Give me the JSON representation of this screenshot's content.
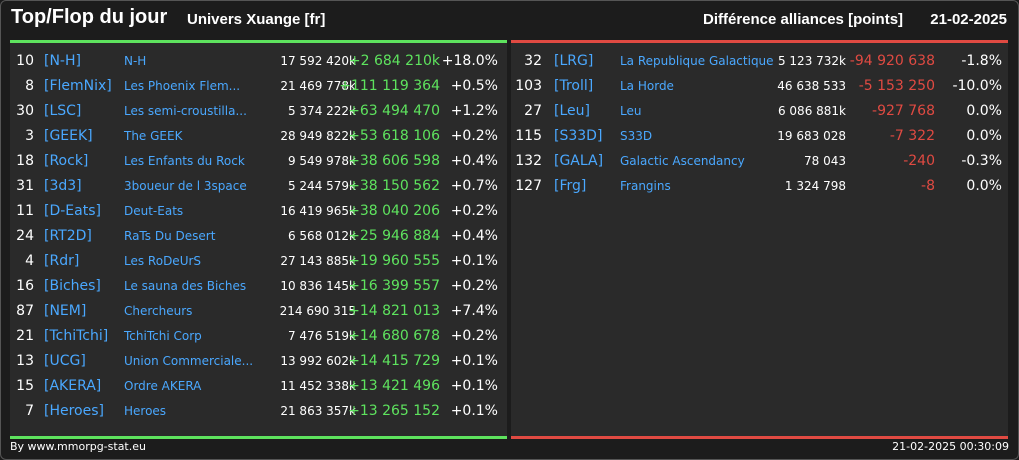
{
  "header": {
    "title": "Top/Flop du jour",
    "subtitle": "Univers Xuange [fr]",
    "diff_label": "Différence alliances [points]",
    "date": "21-02-2025"
  },
  "colors": {
    "positive": "#5ee35e",
    "negative": "#e04a42",
    "link": "#4aa8ff"
  },
  "top": [
    {
      "rank": "10",
      "tag": "[N-H]",
      "name": "N-H",
      "points": "17 592 420k",
      "diff": "+2 684 210k",
      "pct": "+18.0%"
    },
    {
      "rank": "8",
      "tag": "[FlemNix]",
      "name": "Les Phoenix Flem...",
      "points": "21 469 778k",
      "diff": "+111 119 364",
      "pct": "+0.5%"
    },
    {
      "rank": "30",
      "tag": "[LSC]",
      "name": "Les semi-croustilla...",
      "points": "5 374 222k",
      "diff": "+63 494 470",
      "pct": "+1.2%"
    },
    {
      "rank": "3",
      "tag": "[GEEK]",
      "name": "The GEEK",
      "points": "28 949 822k",
      "diff": "+53 618 106",
      "pct": "+0.2%"
    },
    {
      "rank": "18",
      "tag": "[Rock]",
      "name": "Les Enfants du Rock",
      "points": "9 549 978k",
      "diff": "+38 606 598",
      "pct": "+0.4%"
    },
    {
      "rank": "31",
      "tag": "[3d3]",
      "name": "3boueur de l 3space",
      "points": "5 244 579k",
      "diff": "+38 150 562",
      "pct": "+0.7%"
    },
    {
      "rank": "11",
      "tag": "[D-Eats]",
      "name": "Deut-Eats",
      "points": "16 419 965k",
      "diff": "+38 040 206",
      "pct": "+0.2%"
    },
    {
      "rank": "24",
      "tag": "[RT2D]",
      "name": "RaTs Du Desert",
      "points": "6 568 012k",
      "diff": "+25 946 884",
      "pct": "+0.4%"
    },
    {
      "rank": "4",
      "tag": "[Rdr]",
      "name": "Les RoDeUrS",
      "points": "27 143 885k",
      "diff": "+19 960 555",
      "pct": "+0.1%"
    },
    {
      "rank": "16",
      "tag": "[Biches]",
      "name": "Le sauna des Biches",
      "points": "10 836 145k",
      "diff": "+16 399 557",
      "pct": "+0.2%"
    },
    {
      "rank": "87",
      "tag": "[NEM]",
      "name": "Chercheurs",
      "points": "214 690 315",
      "diff": "+14 821 013",
      "pct": "+7.4%"
    },
    {
      "rank": "21",
      "tag": "[TchiTchi]",
      "name": "TchiTchi Corp",
      "points": "7 476 519k",
      "diff": "+14 680 678",
      "pct": "+0.2%"
    },
    {
      "rank": "13",
      "tag": "[UCG]",
      "name": "Union Commerciale...",
      "points": "13 992 602k",
      "diff": "+14 415 729",
      "pct": "+0.1%"
    },
    {
      "rank": "15",
      "tag": "[AKERA]",
      "name": "Ordre AKERA",
      "points": "11 452 338k",
      "diff": "+13 421 496",
      "pct": "+0.1%"
    },
    {
      "rank": "7",
      "tag": "[Heroes]",
      "name": "Heroes",
      "points": "21 863 357k",
      "diff": "+13 265 152",
      "pct": "+0.1%"
    }
  ],
  "flop": [
    {
      "rank": "32",
      "tag": "[LRG]",
      "name": "La Republique Galactique",
      "points": "5 123 732k",
      "diff": "-94 920 638",
      "pct": "-1.8%"
    },
    {
      "rank": "103",
      "tag": "[Troll]",
      "name": "La Horde",
      "points": "46 638 533",
      "diff": "-5 153 250",
      "pct": "-10.0%"
    },
    {
      "rank": "27",
      "tag": "[Leu]",
      "name": "Leu",
      "points": "6 086 881k",
      "diff": "-927 768",
      "pct": "0.0%"
    },
    {
      "rank": "115",
      "tag": "[S33D]",
      "name": "S33D",
      "points": "19 683 028",
      "diff": "-7 322",
      "pct": "0.0%"
    },
    {
      "rank": "132",
      "tag": "[GALA]",
      "name": "Galactic Ascendancy",
      "points": "78 043",
      "diff": "-240",
      "pct": "-0.3%"
    },
    {
      "rank": "127",
      "tag": "[Frg]",
      "name": "Frangins",
      "points": "1 324 798",
      "diff": "-8",
      "pct": "0.0%"
    }
  ],
  "footer": {
    "left": "By www.mmorpg-stat.eu",
    "right": "21-02-2025 00:30:09"
  }
}
